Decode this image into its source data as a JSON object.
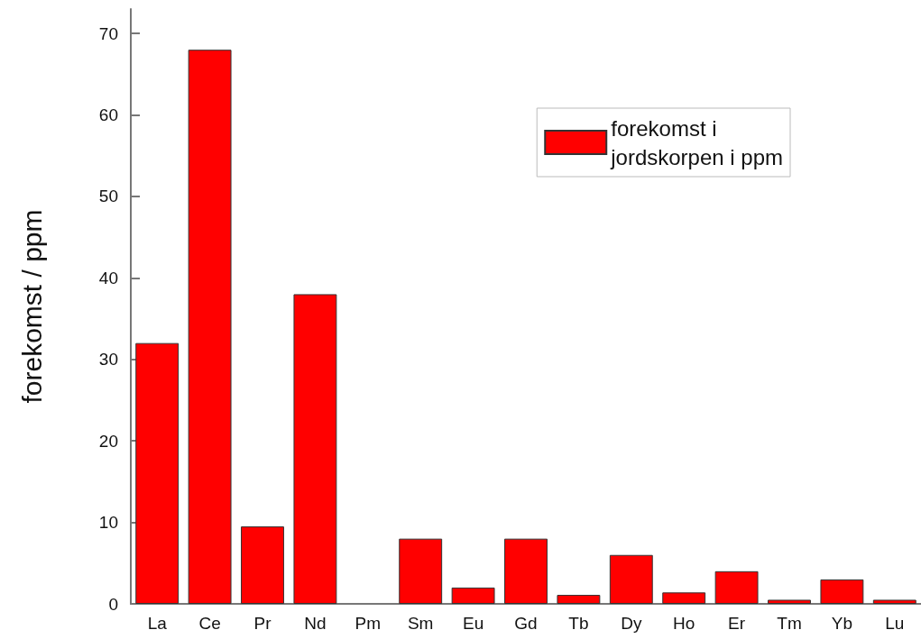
{
  "chart_data": {
    "type": "bar",
    "ylabel": "forekomst / ppm",
    "categories": [
      "La",
      "Ce",
      "Pr",
      "Nd",
      "Pm",
      "Sm",
      "Eu",
      "Gd",
      "Tb",
      "Dy",
      "Ho",
      "Er",
      "Tm",
      "Yb",
      "Lu"
    ],
    "series": [
      {
        "name": "forekomst i\njordskorpen i ppm",
        "color": "#ff0000",
        "values": [
          32,
          68,
          9.5,
          38,
          null,
          8,
          2,
          8,
          1.1,
          6,
          1.4,
          4,
          0.5,
          3,
          0.5
        ]
      }
    ],
    "ylim": [
      0,
      73
    ],
    "yticks": [
      0,
      10,
      20,
      30,
      40,
      50,
      60,
      70
    ],
    "grid": false,
    "legend": "top right"
  }
}
